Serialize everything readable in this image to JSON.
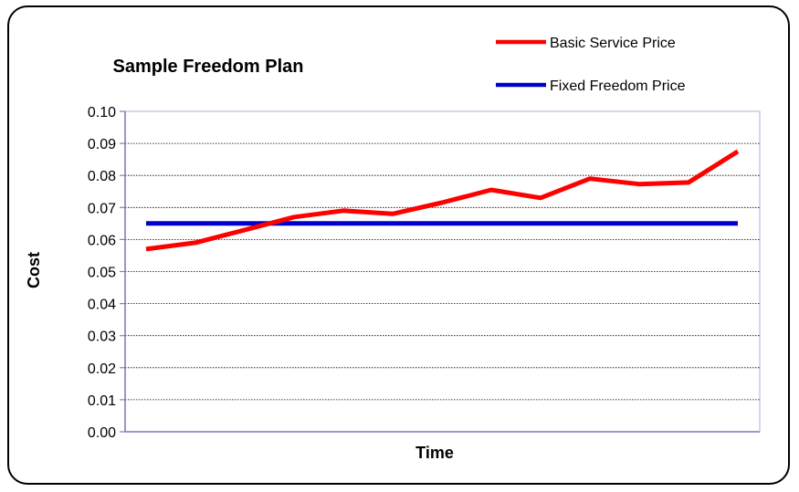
{
  "chart_data": {
    "type": "line",
    "title": "Sample Freedom Plan",
    "xlabel": "Time",
    "ylabel": "Cost",
    "ylim": [
      0,
      0.1
    ],
    "yticks": [
      "0.00",
      "0.01",
      "0.02",
      "0.03",
      "0.04",
      "0.05",
      "0.06",
      "0.07",
      "0.08",
      "0.09",
      "0.10"
    ],
    "x": [
      1,
      2,
      3,
      4,
      5,
      6,
      7,
      8,
      9,
      10,
      11,
      12,
      13
    ],
    "grid": true,
    "legend_position": "top-right",
    "series": [
      {
        "name": "Basic Service Price",
        "color": "#ff0000",
        "values": [
          0.057,
          0.059,
          0.063,
          0.067,
          0.069,
          0.068,
          0.0715,
          0.0755,
          0.073,
          0.079,
          0.0773,
          0.0778,
          0.0875
        ]
      },
      {
        "name": "Fixed Freedom Price",
        "color": "#0000cc",
        "values": [
          0.065,
          0.065,
          0.065,
          0.065,
          0.065,
          0.065,
          0.065,
          0.065,
          0.065,
          0.065,
          0.065,
          0.065,
          0.065
        ]
      }
    ]
  }
}
